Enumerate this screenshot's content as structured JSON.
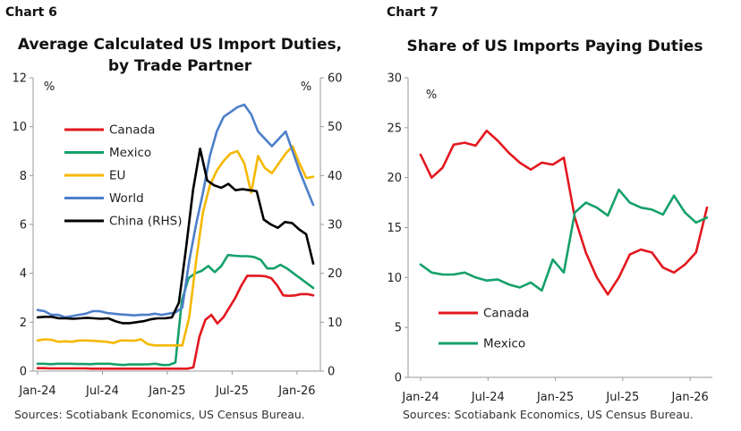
{
  "chart_data": [
    {
      "type": "line",
      "label": "Chart 6",
      "title_lines": [
        "Average Calculated US Import Duties,",
        "by Trade Partner"
      ],
      "unit_left": "%",
      "unit_right": "%",
      "x_ticks": [
        "Jan-24",
        "Jul-24",
        "Jan-25",
        "Jul-25",
        "Jan-26"
      ],
      "y_ticks_left": [
        "0",
        "2",
        "4",
        "6",
        "8",
        "10",
        "12"
      ],
      "y_ticks_right": [
        "0",
        "10",
        "20",
        "30",
        "40",
        "50",
        "60"
      ],
      "ylim_left": [
        0,
        12
      ],
      "ylim_right": [
        0,
        60
      ],
      "legend": "top-left inside",
      "source": "Sources: Scotiabank Economics, US Census Bureau.",
      "series": [
        {
          "name": "Canada",
          "color": "#e3171f",
          "axis": "left",
          "values": [
            0.12,
            0.12,
            0.11,
            0.11,
            0.11,
            0.11,
            0.11,
            0.11,
            0.11,
            0.1,
            0.1,
            0.1,
            0.1,
            0.1,
            0.1,
            0.1,
            0.1,
            0.1,
            0.1,
            0.1,
            0.1,
            0.1,
            0.1,
            0.1,
            0.1,
            0.1,
            0.15,
            1.4,
            2.1,
            2.3,
            1.95,
            2.2,
            2.6,
            3.0,
            3.5,
            3.9,
            3.9,
            3.9,
            3.88,
            3.8,
            3.5,
            3.1,
            3.08,
            3.1,
            3.15,
            3.15,
            3.1
          ]
        },
        {
          "name": "Mexico",
          "color": "#15a06a",
          "axis": "left",
          "values": [
            0.3,
            0.3,
            0.28,
            0.3,
            0.3,
            0.3,
            0.29,
            0.29,
            0.28,
            0.3,
            0.3,
            0.3,
            0.27,
            0.25,
            0.27,
            0.27,
            0.27,
            0.28,
            0.3,
            0.25,
            0.25,
            0.35,
            2.9,
            3.8,
            4.0,
            4.1,
            4.3,
            4.05,
            4.3,
            4.75,
            4.72,
            4.7,
            4.7,
            4.67,
            4.55,
            4.2,
            4.2,
            4.35,
            4.2,
            4.0,
            3.8,
            3.6,
            3.4
          ]
        },
        {
          "name": "EU",
          "color": "#f5b800",
          "axis": "left",
          "values": [
            1.25,
            1.3,
            1.28,
            1.2,
            1.22,
            1.2,
            1.25,
            1.25,
            1.24,
            1.22,
            1.2,
            1.15,
            1.25,
            1.25,
            1.24,
            1.3,
            1.1,
            1.05,
            1.05,
            1.05,
            1.05,
            1.05,
            2.2,
            4.5,
            6.5,
            7.6,
            8.2,
            8.6,
            8.9,
            9.0,
            8.5,
            7.3,
            8.8,
            8.3,
            8.1,
            8.5,
            8.9,
            9.2,
            8.5,
            7.9,
            7.95
          ]
        },
        {
          "name": "World",
          "color": "#4c7fc9",
          "axis": "left",
          "values": [
            2.5,
            2.45,
            2.3,
            2.3,
            2.2,
            2.25,
            2.3,
            2.35,
            2.45,
            2.45,
            2.38,
            2.35,
            2.32,
            2.3,
            2.28,
            2.3,
            2.3,
            2.35,
            2.3,
            2.35,
            2.4,
            2.6,
            4.5,
            6.0,
            7.3,
            8.8,
            9.8,
            10.4,
            10.6,
            10.8,
            10.9,
            10.5,
            9.8,
            9.5,
            9.2,
            9.5,
            9.8,
            9.0,
            8.2,
            7.5,
            6.8
          ]
        },
        {
          "name": "China (RHS)",
          "color": "#000000",
          "axis": "right",
          "values": [
            11.0,
            11.1,
            11.1,
            10.8,
            10.8,
            10.7,
            10.8,
            10.9,
            10.8,
            10.7,
            10.8,
            10.2,
            9.8,
            9.8,
            10.0,
            10.2,
            10.6,
            10.8,
            10.8,
            11.0,
            14.0,
            25.0,
            37.0,
            45.5,
            39.0,
            38.0,
            37.5,
            38.3,
            37.0,
            37.2,
            37.0,
            36.8,
            31.0,
            30.0,
            29.3,
            30.5,
            30.3,
            29.0,
            28.0,
            22.0
          ]
        }
      ]
    },
    {
      "type": "line",
      "label": "Chart 7",
      "title_lines": [
        "Share of US Imports Paying Duties"
      ],
      "unit_left": "%",
      "x_ticks": [
        "Jan-24",
        "Jul-24",
        "Jan-25",
        "Jul-25",
        "Jan-26"
      ],
      "y_ticks_left": [
        "0",
        "5",
        "10",
        "15",
        "20",
        "25",
        "30"
      ],
      "ylim_left": [
        0,
        30
      ],
      "legend": "bottom-left inside",
      "source": "Sources: Scotiabank Economics, US Census Bureau.",
      "series": [
        {
          "name": "Canada",
          "color": "#e3171f",
          "axis": "left",
          "values": [
            22.3,
            20.0,
            21.0,
            23.3,
            23.5,
            23.2,
            24.7,
            23.7,
            22.5,
            21.5,
            20.8,
            21.5,
            21.3,
            22.0,
            16.0,
            12.5,
            10.0,
            8.3,
            10.0,
            12.3,
            12.8,
            12.5,
            11.0,
            10.5,
            11.3,
            12.5,
            17.0
          ]
        },
        {
          "name": "Mexico",
          "color": "#15a06a",
          "axis": "left",
          "values": [
            11.3,
            10.5,
            10.3,
            10.3,
            10.5,
            10.0,
            9.7,
            9.8,
            9.3,
            9.0,
            9.5,
            8.7,
            11.8,
            10.5,
            16.5,
            17.5,
            17.0,
            16.2,
            18.8,
            17.5,
            17.0,
            16.8,
            16.3,
            18.2,
            16.5,
            15.5,
            16.0
          ]
        }
      ]
    }
  ]
}
